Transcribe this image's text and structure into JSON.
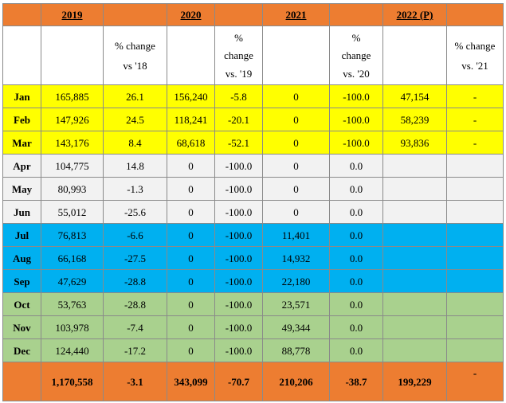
{
  "years": [
    "2019",
    "2020",
    "2021",
    "2022 (P)"
  ],
  "subheaders": [
    {
      "lines": [
        "% change",
        "vs '18"
      ]
    },
    {
      "lines": [
        "%",
        "change",
        "vs. '19"
      ]
    },
    {
      "lines": [
        "%",
        "change",
        "vs. '20"
      ]
    },
    {
      "lines": [
        "% change",
        "vs. '21"
      ]
    }
  ],
  "rows": [
    {
      "month": "Jan",
      "quarter": "q1",
      "v2019": "165,885",
      "c19": "26.1",
      "v2020": "156,240",
      "c20": "-5.8",
      "v2021": "0",
      "c21": "-100.0",
      "v2022": "47,154",
      "c22": "-"
    },
    {
      "month": "Feb",
      "quarter": "q1",
      "v2019": "147,926",
      "c19": "24.5",
      "v2020": "118,241",
      "c20": "-20.1",
      "v2021": "0",
      "c21": "-100.0",
      "v2022": "58,239",
      "c22": "-"
    },
    {
      "month": "Mar",
      "quarter": "q1",
      "v2019": "143,176",
      "c19": "8.4",
      "v2020": "68,618",
      "c20": "-52.1",
      "v2021": "0",
      "c21": "-100.0",
      "v2022": "93,836",
      "c22": "-"
    },
    {
      "month": "Apr",
      "quarter": "q2",
      "v2019": "104,775",
      "c19": "14.8",
      "v2020": "0",
      "c20": "-100.0",
      "v2021": "0",
      "c21": "0.0",
      "v2022": "",
      "c22": ""
    },
    {
      "month": "May",
      "quarter": "q2",
      "v2019": "80,993",
      "c19": "-1.3",
      "v2020": "0",
      "c20": "-100.0",
      "v2021": "0",
      "c21": "0.0",
      "v2022": "",
      "c22": ""
    },
    {
      "month": "Jun",
      "quarter": "q2",
      "v2019": "55,012",
      "c19": "-25.6",
      "v2020": "0",
      "c20": "-100.0",
      "v2021": "0",
      "c21": "0.0",
      "v2022": "",
      "c22": ""
    },
    {
      "month": "Jul",
      "quarter": "q3",
      "v2019": "76,813",
      "c19": "-6.6",
      "v2020": "0",
      "c20": "-100.0",
      "v2021": "11,401",
      "c21": "0.0",
      "v2022": "",
      "c22": ""
    },
    {
      "month": "Aug",
      "quarter": "q3",
      "v2019": "66,168",
      "c19": "-27.5",
      "v2020": "0",
      "c20": "-100.0",
      "v2021": "14,932",
      "c21": "0.0",
      "v2022": "",
      "c22": ""
    },
    {
      "month": "Sep",
      "quarter": "q3",
      "v2019": "47,629",
      "c19": "-28.8",
      "v2020": "0",
      "c20": "-100.0",
      "v2021": "22,180",
      "c21": "0.0",
      "v2022": "",
      "c22": ""
    },
    {
      "month": "Oct",
      "quarter": "q4",
      "v2019": "53,763",
      "c19": "-28.8",
      "v2020": "0",
      "c20": "-100.0",
      "v2021": "23,571",
      "c21": "0.0",
      "v2022": "",
      "c22": ""
    },
    {
      "month": "Nov",
      "quarter": "q4",
      "v2019": "103,978",
      "c19": "-7.4",
      "v2020": "0",
      "c20": "-100.0",
      "v2021": "49,344",
      "c21": "0.0",
      "v2022": "",
      "c22": ""
    },
    {
      "month": "Dec",
      "quarter": "q4",
      "v2019": "124,440",
      "c19": "-17.2",
      "v2020": "0",
      "c20": "-100.0",
      "v2021": "88,778",
      "c21": "0.0",
      "v2022": "",
      "c22": ""
    }
  ],
  "totals": {
    "v2019": "1,170,558",
    "c19": "-3.1",
    "v2020": "343,099",
    "c20": "-70.7",
    "v2021": "210,206",
    "c21": "-38.7",
    "v2022": "199,229",
    "c22": "-"
  },
  "colors": {
    "header": "#ed7d31",
    "q1": "#ffff00",
    "q2": "#f2f2f2",
    "q3": "#00b0f0",
    "q4": "#a9d18e"
  }
}
